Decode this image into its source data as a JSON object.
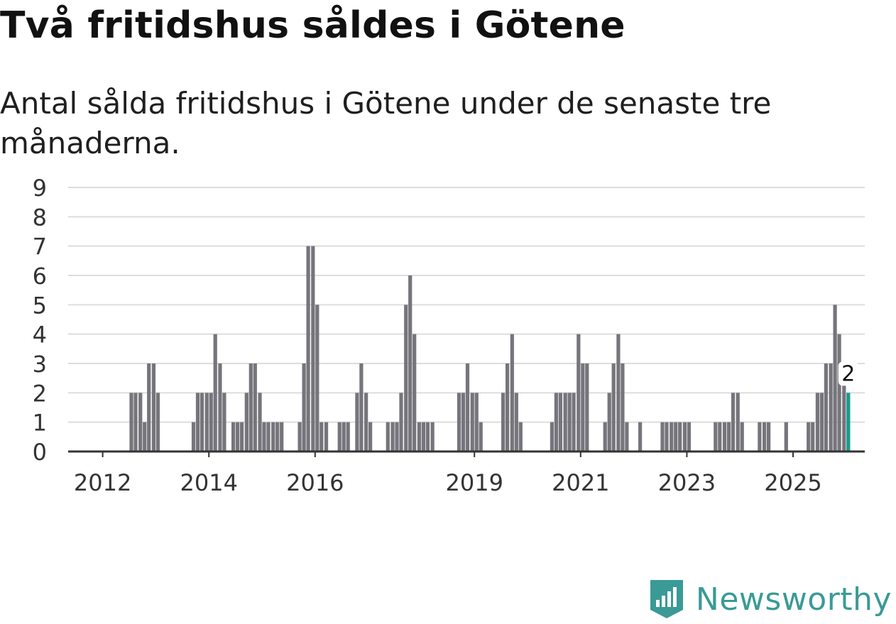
{
  "title": "Två fritidshus såldes i Götene",
  "subtitle": "Antal sålda fritidshus i Götene under de senaste tre månaderna.",
  "brand": {
    "name": "Newsworthy",
    "icon": "newsworthy-logo-icon",
    "color": "#3a9a96"
  },
  "colors": {
    "bar": "#76757c",
    "highlight": "#1a9a8c",
    "grid": "#dddddd",
    "axis": "#333333"
  },
  "chart_data": {
    "type": "bar",
    "title": "Två fritidshus såldes i Götene",
    "xlabel": "",
    "ylabel": "",
    "ylim": [
      0,
      9
    ],
    "yticks": [
      0,
      1,
      2,
      3,
      4,
      5,
      6,
      7,
      8,
      9
    ],
    "xlim": [
      2011.35,
      2026.35
    ],
    "xticks": [
      2012,
      2014,
      2016,
      2019,
      2021,
      2023,
      2025
    ],
    "xtick_labels": [
      "2012",
      "2014",
      "2016",
      "2019",
      "2021",
      "2023",
      "2025"
    ],
    "grid": true,
    "bar_width_years": 0.07,
    "series": [
      {
        "name": "Antal sålda fritidshus",
        "points": [
          {
            "x": 2012.54,
            "y": 2
          },
          {
            "x": 2012.62,
            "y": 2
          },
          {
            "x": 2012.71,
            "y": 2
          },
          {
            "x": 2012.79,
            "y": 1
          },
          {
            "x": 2012.87,
            "y": 3
          },
          {
            "x": 2012.96,
            "y": 3
          },
          {
            "x": 2013.04,
            "y": 2
          },
          {
            "x": 2013.71,
            "y": 1
          },
          {
            "x": 2013.79,
            "y": 2
          },
          {
            "x": 2013.87,
            "y": 2
          },
          {
            "x": 2013.96,
            "y": 2
          },
          {
            "x": 2014.04,
            "y": 2
          },
          {
            "x": 2014.12,
            "y": 4
          },
          {
            "x": 2014.21,
            "y": 3
          },
          {
            "x": 2014.29,
            "y": 2
          },
          {
            "x": 2014.46,
            "y": 1
          },
          {
            "x": 2014.54,
            "y": 1
          },
          {
            "x": 2014.62,
            "y": 1
          },
          {
            "x": 2014.71,
            "y": 2
          },
          {
            "x": 2014.79,
            "y": 3
          },
          {
            "x": 2014.87,
            "y": 3
          },
          {
            "x": 2014.96,
            "y": 2
          },
          {
            "x": 2015.04,
            "y": 1
          },
          {
            "x": 2015.12,
            "y": 1
          },
          {
            "x": 2015.21,
            "y": 1
          },
          {
            "x": 2015.29,
            "y": 1
          },
          {
            "x": 2015.37,
            "y": 1
          },
          {
            "x": 2015.71,
            "y": 1
          },
          {
            "x": 2015.79,
            "y": 3
          },
          {
            "x": 2015.87,
            "y": 7
          },
          {
            "x": 2015.96,
            "y": 7
          },
          {
            "x": 2016.04,
            "y": 5
          },
          {
            "x": 2016.12,
            "y": 1
          },
          {
            "x": 2016.21,
            "y": 1
          },
          {
            "x": 2016.46,
            "y": 1
          },
          {
            "x": 2016.54,
            "y": 1
          },
          {
            "x": 2016.62,
            "y": 1
          },
          {
            "x": 2016.79,
            "y": 2
          },
          {
            "x": 2016.87,
            "y": 3
          },
          {
            "x": 2016.96,
            "y": 2
          },
          {
            "x": 2017.04,
            "y": 1
          },
          {
            "x": 2017.37,
            "y": 1
          },
          {
            "x": 2017.46,
            "y": 1
          },
          {
            "x": 2017.54,
            "y": 1
          },
          {
            "x": 2017.62,
            "y": 2
          },
          {
            "x": 2017.71,
            "y": 5
          },
          {
            "x": 2017.79,
            "y": 6
          },
          {
            "x": 2017.87,
            "y": 4
          },
          {
            "x": 2017.96,
            "y": 1
          },
          {
            "x": 2018.04,
            "y": 1
          },
          {
            "x": 2018.12,
            "y": 1
          },
          {
            "x": 2018.21,
            "y": 1
          },
          {
            "x": 2018.71,
            "y": 2
          },
          {
            "x": 2018.79,
            "y": 2
          },
          {
            "x": 2018.87,
            "y": 3
          },
          {
            "x": 2018.96,
            "y": 2
          },
          {
            "x": 2019.04,
            "y": 2
          },
          {
            "x": 2019.12,
            "y": 1
          },
          {
            "x": 2019.54,
            "y": 2
          },
          {
            "x": 2019.62,
            "y": 3
          },
          {
            "x": 2019.71,
            "y": 4
          },
          {
            "x": 2019.79,
            "y": 2
          },
          {
            "x": 2019.87,
            "y": 1
          },
          {
            "x": 2020.46,
            "y": 1
          },
          {
            "x": 2020.54,
            "y": 2
          },
          {
            "x": 2020.62,
            "y": 2
          },
          {
            "x": 2020.71,
            "y": 2
          },
          {
            "x": 2020.79,
            "y": 2
          },
          {
            "x": 2020.87,
            "y": 2
          },
          {
            "x": 2020.96,
            "y": 4
          },
          {
            "x": 2021.04,
            "y": 3
          },
          {
            "x": 2021.12,
            "y": 3
          },
          {
            "x": 2021.46,
            "y": 1
          },
          {
            "x": 2021.54,
            "y": 2
          },
          {
            "x": 2021.62,
            "y": 3
          },
          {
            "x": 2021.71,
            "y": 4
          },
          {
            "x": 2021.79,
            "y": 3
          },
          {
            "x": 2021.87,
            "y": 1
          },
          {
            "x": 2022.12,
            "y": 1
          },
          {
            "x": 2022.54,
            "y": 1
          },
          {
            "x": 2022.62,
            "y": 1
          },
          {
            "x": 2022.71,
            "y": 1
          },
          {
            "x": 2022.79,
            "y": 1
          },
          {
            "x": 2022.87,
            "y": 1
          },
          {
            "x": 2022.96,
            "y": 1
          },
          {
            "x": 2023.04,
            "y": 1
          },
          {
            "x": 2023.54,
            "y": 1
          },
          {
            "x": 2023.62,
            "y": 1
          },
          {
            "x": 2023.71,
            "y": 1
          },
          {
            "x": 2023.79,
            "y": 1
          },
          {
            "x": 2023.87,
            "y": 2
          },
          {
            "x": 2023.96,
            "y": 2
          },
          {
            "x": 2024.04,
            "y": 1
          },
          {
            "x": 2024.37,
            "y": 1
          },
          {
            "x": 2024.46,
            "y": 1
          },
          {
            "x": 2024.54,
            "y": 1
          },
          {
            "x": 2024.87,
            "y": 1
          },
          {
            "x": 2025.29,
            "y": 1
          },
          {
            "x": 2025.37,
            "y": 1
          },
          {
            "x": 2025.46,
            "y": 2
          },
          {
            "x": 2025.54,
            "y": 2
          },
          {
            "x": 2025.62,
            "y": 3
          },
          {
            "x": 2025.71,
            "y": 3
          },
          {
            "x": 2025.79,
            "y": 5
          },
          {
            "x": 2025.87,
            "y": 4
          },
          {
            "x": 2025.96,
            "y": 3
          },
          {
            "x": 2026.04,
            "y": 2,
            "highlight": true
          }
        ]
      }
    ],
    "annotations": [
      {
        "x": 2026.04,
        "y": 2,
        "text": "2"
      }
    ]
  }
}
